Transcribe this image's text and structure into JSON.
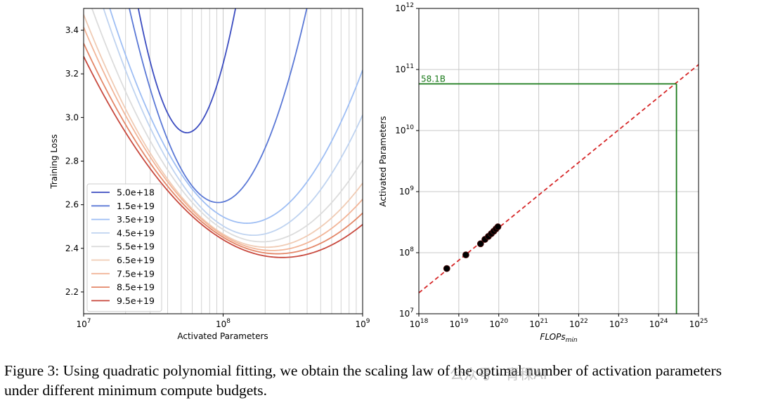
{
  "chart_data": [
    {
      "type": "line",
      "xlabel": "Activated Parameters",
      "ylabel": "Training Loss",
      "xscale": "log",
      "xlim": [
        10000000,
        1000000000
      ],
      "ylim": [
        2.1,
        3.5
      ],
      "grid": "x-major-and-minor",
      "legend_placement": "lower-left",
      "xtick_labels": [
        {
          "base": "10",
          "exp": "7",
          "value": 10000000
        },
        {
          "base": "10",
          "exp": "8",
          "value": 100000000
        },
        {
          "base": "10",
          "exp": "9",
          "value": 1000000000
        }
      ],
      "ytick_labels": [
        "2.2",
        "2.4",
        "2.6",
        "2.8",
        "3.0",
        "3.2",
        "3.4"
      ],
      "series": [
        {
          "name": "5.0e+18",
          "color": "#3b4cc0",
          "min_x": 55000000,
          "min_loss": 2.93,
          "curvature": 4.7
        },
        {
          "name": "1.5e+19",
          "color": "#5a78d6",
          "min_x": 92000000,
          "min_loss": 2.61,
          "curvature": 2.2
        },
        {
          "name": "3.5e+19",
          "color": "#9ebef4",
          "min_x": 148000000,
          "min_loss": 2.515,
          "curvature": 1.02
        },
        {
          "name": "4.5e+19",
          "color": "#bfd3f0",
          "min_x": 165000000,
          "min_loss": 2.46,
          "curvature": 0.9
        },
        {
          "name": "5.5e+19",
          "color": "#dcdcdc",
          "min_x": 190000000,
          "min_loss": 2.43,
          "curvature": 0.72
        },
        {
          "name": "6.5e+19",
          "color": "#f0cbb4",
          "min_x": 205000000,
          "min_loss": 2.405,
          "curvature": 0.62
        },
        {
          "name": "7.5e+19",
          "color": "#f2b598",
          "min_x": 225000000,
          "min_loss": 2.39,
          "curvature": 0.56
        },
        {
          "name": "8.5e+19",
          "color": "#e48768",
          "min_x": 245000000,
          "min_loss": 2.375,
          "curvature": 0.5
        },
        {
          "name": "9.5e+19",
          "color": "#c8493e",
          "min_x": 265000000,
          "min_loss": 2.358,
          "curvature": 0.455
        }
      ]
    },
    {
      "type": "scatter",
      "xlabel": "FLOPs",
      "xlabel_sub": "min",
      "ylabel": "Activated Parameters",
      "xscale": "log",
      "yscale": "log",
      "xlim": [
        1e+18,
        1e+25
      ],
      "ylim": [
        10000000,
        1000000000000
      ],
      "grid": "major",
      "xtick_labels": [
        {
          "base": "10",
          "exp": "18"
        },
        {
          "base": "10",
          "exp": "19"
        },
        {
          "base": "10",
          "exp": "20"
        },
        {
          "base": "10",
          "exp": "21"
        },
        {
          "base": "10",
          "exp": "22"
        },
        {
          "base": "10",
          "exp": "23"
        },
        {
          "base": "10",
          "exp": "24"
        },
        {
          "base": "10",
          "exp": "25"
        }
      ],
      "ytick_labels": [
        {
          "base": "10",
          "exp": "7"
        },
        {
          "base": "10",
          "exp": "8"
        },
        {
          "base": "10",
          "exp": "9"
        },
        {
          "base": "10",
          "exp": "10"
        },
        {
          "base": "10",
          "exp": "11"
        },
        {
          "base": "10",
          "exp": "12"
        }
      ],
      "points": [
        {
          "x": 5e+18,
          "y": 55000000
        },
        {
          "x": 1.5e+19,
          "y": 92000000
        },
        {
          "x": 3.5e+19,
          "y": 140000000
        },
        {
          "x": 4.5e+19,
          "y": 165000000
        },
        {
          "x": 5.5e+19,
          "y": 185000000
        },
        {
          "x": 6.5e+19,
          "y": 205000000
        },
        {
          "x": 7.5e+19,
          "y": 225000000
        },
        {
          "x": 8.5e+19,
          "y": 245000000
        },
        {
          "x": 9.5e+19,
          "y": 265000000
        }
      ],
      "fit_line": {
        "style": "dashed",
        "color": "#d62728",
        "x": [
          1e+18,
          1e+25
        ],
        "y": [
          22000000,
          120000000000
        ]
      },
      "highlight": {
        "color": "#1a7a1a",
        "label": "58.1B",
        "x": 2.8e+24,
        "y": 58100000000
      }
    }
  ],
  "caption": {
    "text": "Figure 3: Using quadratic polynomial fitting, we obtain the scaling law of the optimal number of activation parameters under different minimum compute budgets."
  },
  "watermark": {
    "text": "公众号 · 青稞AI"
  }
}
